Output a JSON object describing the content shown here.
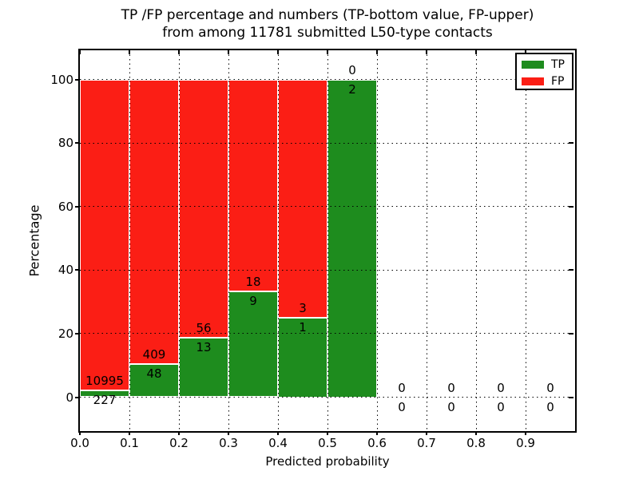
{
  "title": {
    "line1": "TP /FP percentage and numbers (TP-bottom value, FP-upper)",
    "line2": "from among 11781 submitted L50-type contacts"
  },
  "axes": {
    "xlabel": "Predicted probability",
    "ylabel": "Percentage"
  },
  "legend": {
    "items": [
      {
        "label": "TP",
        "color": "#1e8c1e"
      },
      {
        "label": "FP",
        "color": "#fb1e15"
      }
    ]
  },
  "colors": {
    "tp": "#1e8c1e",
    "fp": "#fb1e15",
    "axis": "#000000",
    "background": "#ffffff"
  },
  "chart_data": {
    "type": "bar",
    "stacked": true,
    "normalized_to_percent": true,
    "total_submitted": 11781,
    "categories": [
      "0.0-0.1",
      "0.1-0.2",
      "0.2-0.3",
      "0.3-0.4",
      "0.4-0.5",
      "0.5-0.6",
      "0.6-0.7",
      "0.7-0.8",
      "0.8-0.9",
      "0.9-1.0"
    ],
    "bin_start": [
      0.0,
      0.1,
      0.2,
      0.3,
      0.4,
      0.5,
      0.6,
      0.7,
      0.8,
      0.9
    ],
    "bin_width": 0.1,
    "series": [
      {
        "name": "TP",
        "color": "#1e8c1e",
        "counts": [
          227,
          48,
          13,
          9,
          1,
          2,
          0,
          0,
          0,
          0
        ]
      },
      {
        "name": "FP",
        "color": "#fb1e15",
        "counts": [
          10995,
          409,
          56,
          18,
          3,
          0,
          0,
          0,
          0,
          0
        ]
      }
    ],
    "tp_percent_of_bin": [
      2.02,
      10.5,
      18.84,
      33.33,
      25.0,
      100.0,
      0,
      0,
      0,
      0
    ],
    "title": "TP /FP percentage and numbers (TP-bottom value, FP-upper) from among 11781 submitted L50-type contacts",
    "xlabel": "Predicted probability",
    "ylabel": "Percentage",
    "xticks": [
      "0.0",
      "0.1",
      "0.2",
      "0.3",
      "0.4",
      "0.5",
      "0.6",
      "0.7",
      "0.8",
      "0.9"
    ],
    "xtick_values": [
      0.0,
      0.1,
      0.2,
      0.3,
      0.4,
      0.5,
      0.6,
      0.7,
      0.8,
      0.9
    ],
    "yticks": [
      "0",
      "20",
      "40",
      "60",
      "80",
      "100"
    ],
    "ytick_values": [
      0,
      20,
      40,
      60,
      80,
      100
    ],
    "xlim": [
      0.0,
      1.0
    ],
    "ylim": [
      -10.7,
      109.8
    ],
    "grid": "dotted",
    "legend_position": "upper right",
    "bar_label_convention": "FP count above TP-bar top, TP count below TP-bar top"
  }
}
